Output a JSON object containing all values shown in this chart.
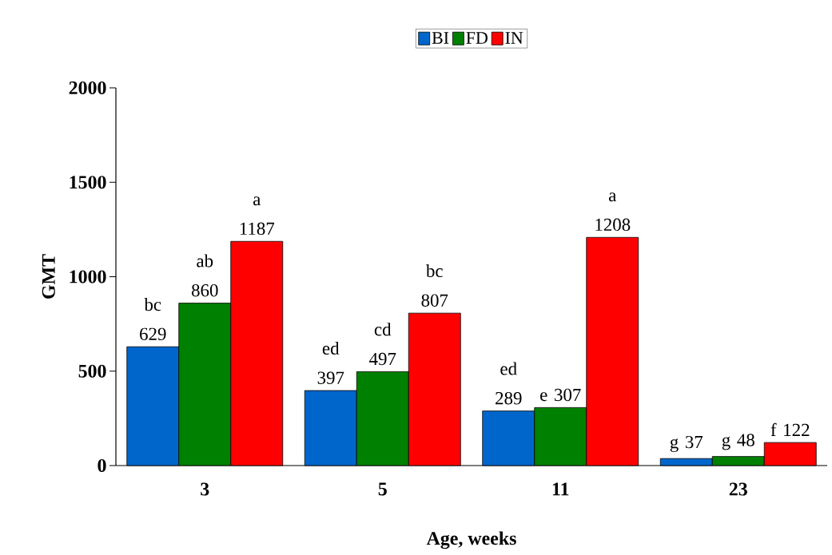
{
  "chart_data": {
    "type": "bar",
    "xlabel": "Age, weeks",
    "ylabel": "GMT",
    "categories": [
      "3",
      "5",
      "11",
      "23"
    ],
    "series": [
      {
        "name": "BI",
        "color": "#0066cc",
        "values": [
          629,
          397,
          289,
          37
        ],
        "value_labels": [
          "bc 629",
          "ed 397",
          "ed 289",
          "g 37"
        ]
      },
      {
        "name": "FD",
        "color": "#008000",
        "values": [
          860,
          497,
          307,
          48
        ],
        "value_labels": [
          "ab 860",
          "cd 497",
          "e 307",
          "g 48"
        ]
      },
      {
        "name": "IN",
        "color": "#ff0000",
        "values": [
          1187,
          807,
          1208,
          122
        ],
        "value_labels": [
          "a 1187",
          "bc 807",
          "a 1208",
          "f 122"
        ]
      }
    ],
    "ylim": [
      0,
      2000
    ],
    "yticks": [
      0,
      500,
      1000,
      1500,
      2000
    ],
    "legend": "top"
  }
}
